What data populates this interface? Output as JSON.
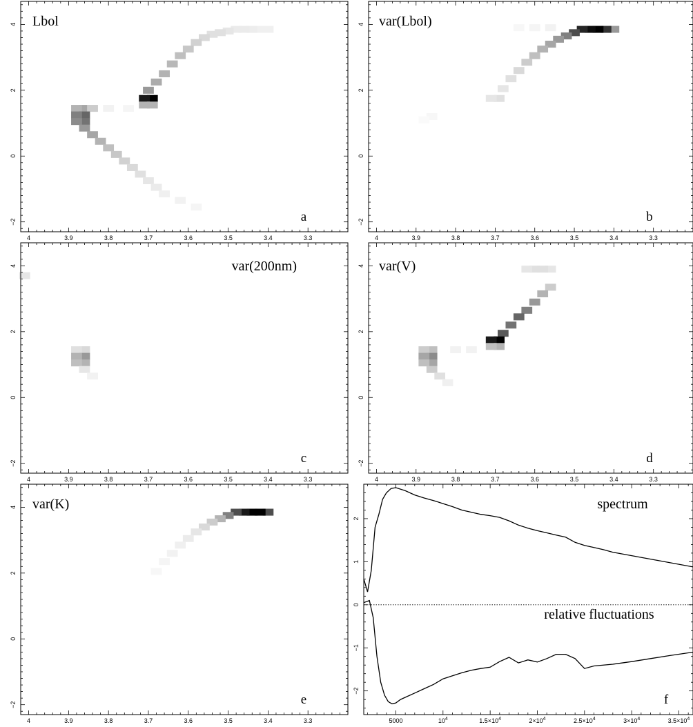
{
  "chart_data": [
    {
      "type": "heatmap",
      "panel": "a",
      "title": "Lbol",
      "x_ticks": [
        "4",
        "3.9",
        "3.8",
        "3.7",
        "3.6",
        "3.5",
        "3.4",
        "3.3"
      ],
      "y_ticks": [
        "−2",
        "0",
        "2",
        "4"
      ],
      "xlim": [
        4.02,
        3.2
      ],
      "ylim": [
        -2.3,
        4.7
      ],
      "cell_size": {
        "dx": 0.01,
        "dy": 0.2
      },
      "cells": [
        [
          3.4,
          3.85,
          0.06
        ],
        [
          3.42,
          3.85,
          0.06
        ],
        [
          3.44,
          3.85,
          0.07
        ],
        [
          3.46,
          3.85,
          0.08
        ],
        [
          3.48,
          3.85,
          0.08
        ],
        [
          3.5,
          3.8,
          0.1
        ],
        [
          3.52,
          3.75,
          0.12
        ],
        [
          3.54,
          3.7,
          0.12
        ],
        [
          3.56,
          3.6,
          0.15
        ],
        [
          3.58,
          3.45,
          0.18
        ],
        [
          3.6,
          3.25,
          0.22
        ],
        [
          3.62,
          3.05,
          0.25
        ],
        [
          3.64,
          2.8,
          0.28
        ],
        [
          3.66,
          2.5,
          0.3
        ],
        [
          3.68,
          2.25,
          0.33
        ],
        [
          3.7,
          2.0,
          0.4
        ],
        [
          3.69,
          1.75,
          1.0
        ],
        [
          3.71,
          1.75,
          0.9
        ],
        [
          3.69,
          1.55,
          0.3
        ],
        [
          3.71,
          1.55,
          0.3
        ],
        [
          3.86,
          1.45,
          0.35
        ],
        [
          3.88,
          1.45,
          0.3
        ],
        [
          3.84,
          1.45,
          0.2
        ],
        [
          3.86,
          1.25,
          0.6
        ],
        [
          3.88,
          1.25,
          0.5
        ],
        [
          3.86,
          1.05,
          0.55
        ],
        [
          3.88,
          1.05,
          0.45
        ],
        [
          3.86,
          0.85,
          0.4
        ],
        [
          3.84,
          0.65,
          0.35
        ],
        [
          3.82,
          0.45,
          0.3
        ],
        [
          3.8,
          0.25,
          0.25
        ],
        [
          3.78,
          0.05,
          0.22
        ],
        [
          3.76,
          -0.15,
          0.18
        ],
        [
          3.74,
          -0.35,
          0.15
        ],
        [
          3.72,
          -0.55,
          0.12
        ],
        [
          3.7,
          -0.75,
          0.1
        ],
        [
          3.68,
          -0.95,
          0.08
        ],
        [
          3.66,
          -1.15,
          0.06
        ],
        [
          3.62,
          -1.35,
          0.05
        ],
        [
          3.58,
          -1.55,
          0.04
        ],
        [
          3.8,
          1.45,
          0.05
        ],
        [
          3.75,
          1.45,
          0.04
        ]
      ],
      "label": "a"
    },
    {
      "type": "heatmap",
      "panel": "b",
      "title": "var(Lbol)",
      "x_ticks": [
        "4",
        "3.9",
        "3.8",
        "3.7",
        "3.6",
        "3.5",
        "3.4",
        "3.3"
      ],
      "y_ticks": [
        "−2",
        "0",
        "2",
        "4"
      ],
      "xlim": [
        4.02,
        3.2
      ],
      "ylim": [
        -2.3,
        4.7
      ],
      "cell_size": {
        "dx": 0.01,
        "dy": 0.2
      },
      "cells": [
        [
          3.4,
          3.85,
          0.4
        ],
        [
          3.42,
          3.85,
          0.8
        ],
        [
          3.44,
          3.85,
          1.0
        ],
        [
          3.46,
          3.85,
          0.95
        ],
        [
          3.48,
          3.85,
          0.85
        ],
        [
          3.5,
          3.75,
          0.7
        ],
        [
          3.52,
          3.65,
          0.5
        ],
        [
          3.54,
          3.55,
          0.4
        ],
        [
          3.56,
          3.4,
          0.35
        ],
        [
          3.58,
          3.25,
          0.3
        ],
        [
          3.6,
          3.05,
          0.25
        ],
        [
          3.62,
          2.85,
          0.2
        ],
        [
          3.64,
          2.6,
          0.15
        ],
        [
          3.66,
          2.35,
          0.12
        ],
        [
          3.68,
          2.05,
          0.1
        ],
        [
          3.69,
          1.75,
          0.12
        ],
        [
          3.71,
          1.75,
          0.1
        ],
        [
          3.56,
          3.9,
          0.05
        ],
        [
          3.6,
          3.9,
          0.04
        ],
        [
          3.64,
          3.9,
          0.03
        ],
        [
          3.86,
          1.2,
          0.03
        ],
        [
          3.88,
          1.1,
          0.02
        ]
      ],
      "label": "b"
    },
    {
      "type": "heatmap",
      "panel": "c",
      "title": "var(200nm)",
      "x_ticks": [
        "4",
        "3.9",
        "3.8",
        "3.7",
        "3.6",
        "3.5",
        "3.4",
        "3.3"
      ],
      "y_ticks": [
        "−2",
        "0",
        "2",
        "4"
      ],
      "xlim": [
        4.02,
        3.2
      ],
      "ylim": [
        -2.3,
        4.7
      ],
      "cell_size": {
        "dx": 0.01,
        "dy": 0.2
      },
      "cells": [
        [
          4.01,
          3.7,
          0.1
        ],
        [
          3.86,
          1.45,
          0.15
        ],
        [
          3.88,
          1.45,
          0.12
        ],
        [
          3.86,
          1.25,
          0.4
        ],
        [
          3.88,
          1.25,
          0.3
        ],
        [
          3.86,
          1.05,
          0.3
        ],
        [
          3.88,
          1.05,
          0.25
        ],
        [
          3.86,
          0.85,
          0.1
        ],
        [
          3.84,
          0.65,
          0.05
        ]
      ],
      "label": "c"
    },
    {
      "type": "heatmap",
      "panel": "d",
      "title": "var(V)",
      "x_ticks": [
        "4",
        "3.9",
        "3.8",
        "3.7",
        "3.6",
        "3.5",
        "3.4",
        "3.3"
      ],
      "y_ticks": [
        "−2",
        "0",
        "2",
        "4"
      ],
      "xlim": [
        4.02,
        3.2
      ],
      "ylim": [
        -2.3,
        4.7
      ],
      "cell_size": {
        "dx": 0.01,
        "dy": 0.2
      },
      "cells": [
        [
          3.56,
          3.9,
          0.1
        ],
        [
          3.58,
          3.9,
          0.12
        ],
        [
          3.6,
          3.9,
          0.12
        ],
        [
          3.62,
          3.9,
          0.1
        ],
        [
          3.56,
          3.35,
          0.2
        ],
        [
          3.58,
          3.15,
          0.3
        ],
        [
          3.6,
          2.9,
          0.4
        ],
        [
          3.62,
          2.65,
          0.5
        ],
        [
          3.64,
          2.45,
          0.6
        ],
        [
          3.66,
          2.2,
          0.55
        ],
        [
          3.68,
          1.95,
          0.65
        ],
        [
          3.69,
          1.75,
          1.0
        ],
        [
          3.71,
          1.75,
          0.9
        ],
        [
          3.69,
          1.55,
          0.3
        ],
        [
          3.71,
          1.55,
          0.25
        ],
        [
          3.86,
          1.45,
          0.25
        ],
        [
          3.88,
          1.45,
          0.2
        ],
        [
          3.86,
          1.25,
          0.45
        ],
        [
          3.88,
          1.25,
          0.35
        ],
        [
          3.86,
          1.05,
          0.35
        ],
        [
          3.88,
          1.05,
          0.25
        ],
        [
          3.86,
          0.85,
          0.2
        ],
        [
          3.84,
          0.65,
          0.12
        ],
        [
          3.82,
          0.45,
          0.06
        ],
        [
          3.76,
          1.45,
          0.05
        ],
        [
          3.8,
          1.45,
          0.05
        ]
      ],
      "label": "d"
    },
    {
      "type": "heatmap",
      "panel": "e",
      "title": "var(K)",
      "x_ticks": [
        "4",
        "3.9",
        "3.8",
        "3.7",
        "3.6",
        "3.5",
        "3.4",
        "3.3"
      ],
      "y_ticks": [
        "−2",
        "0",
        "2",
        "4"
      ],
      "xlim": [
        4.02,
        3.2
      ],
      "ylim": [
        -2.3,
        4.7
      ],
      "cell_size": {
        "dx": 0.01,
        "dy": 0.2
      },
      "cells": [
        [
          3.4,
          3.85,
          0.7
        ],
        [
          3.42,
          3.85,
          1.0
        ],
        [
          3.44,
          3.85,
          1.0
        ],
        [
          3.46,
          3.85,
          0.9
        ],
        [
          3.48,
          3.85,
          0.7
        ],
        [
          3.5,
          3.75,
          0.5
        ],
        [
          3.52,
          3.65,
          0.3
        ],
        [
          3.54,
          3.55,
          0.2
        ],
        [
          3.56,
          3.4,
          0.15
        ],
        [
          3.58,
          3.25,
          0.1
        ],
        [
          3.6,
          3.05,
          0.08
        ],
        [
          3.62,
          2.85,
          0.06
        ],
        [
          3.64,
          2.6,
          0.05
        ],
        [
          3.66,
          2.35,
          0.04
        ],
        [
          3.68,
          2.05,
          0.03
        ]
      ],
      "label": "e"
    },
    {
      "type": "line",
      "panel": "f",
      "x_ticks": [
        {
          "value": 5000,
          "label": "5000",
          "exp": ""
        },
        {
          "value": 10000,
          "label": "10",
          "exp": "4"
        },
        {
          "value": 15000,
          "label": "1.5×10",
          "exp": "4"
        },
        {
          "value": 20000,
          "label": "2×10",
          "exp": "4"
        },
        {
          "value": 25000,
          "label": "2.5×10",
          "exp": "4"
        },
        {
          "value": 30000,
          "label": "3×10",
          "exp": "4"
        },
        {
          "value": 35000,
          "label": "3.5×10",
          "exp": "4"
        }
      ],
      "y_ticks": [
        "−2",
        "−1",
        "0",
        "1",
        "2"
      ],
      "xlim": [
        1600,
        36500
      ],
      "ylim": [
        -2.55,
        2.8
      ],
      "zero_line": true,
      "series": [
        {
          "annotation": "spectrum",
          "x": [
            1600,
            2000,
            2400,
            2800,
            3200,
            3600,
            4000,
            4500,
            5000,
            6000,
            7000,
            8000,
            9000,
            10000,
            11000,
            12000,
            13000,
            14000,
            15000,
            16000,
            17000,
            18000,
            19000,
            20000,
            21000,
            22000,
            23000,
            24000,
            25000,
            26000,
            27000,
            28000,
            29000,
            30000,
            31000,
            32000,
            33000,
            34000,
            35000,
            36500
          ],
          "y": [
            0.6,
            0.3,
            0.8,
            1.8,
            2.1,
            2.45,
            2.6,
            2.7,
            2.72,
            2.65,
            2.55,
            2.48,
            2.42,
            2.35,
            2.28,
            2.2,
            2.15,
            2.1,
            2.07,
            2.03,
            1.95,
            1.85,
            1.78,
            1.72,
            1.67,
            1.62,
            1.57,
            1.45,
            1.38,
            1.33,
            1.28,
            1.22,
            1.18,
            1.14,
            1.1,
            1.06,
            1.02,
            0.98,
            0.94,
            0.88
          ]
        },
        {
          "annotation": "relative fluctuations",
          "x": [
            1600,
            2200,
            2600,
            3000,
            3400,
            3800,
            4200,
            4600,
            5000,
            5500,
            6000,
            7000,
            8000,
            9000,
            10000,
            11000,
            12000,
            13000,
            14000,
            15000,
            16000,
            17000,
            18000,
            19000,
            20000,
            21000,
            22000,
            23000,
            24000,
            25000,
            26000,
            28000,
            30000,
            32000,
            34000,
            36500
          ],
          "y": [
            0.05,
            0.1,
            -0.3,
            -1.2,
            -1.8,
            -2.1,
            -2.25,
            -2.3,
            -2.28,
            -2.2,
            -2.15,
            -2.05,
            -1.95,
            -1.85,
            -1.72,
            -1.65,
            -1.58,
            -1.52,
            -1.48,
            -1.45,
            -1.32,
            -1.22,
            -1.35,
            -1.28,
            -1.33,
            -1.25,
            -1.15,
            -1.15,
            -1.25,
            -1.48,
            -1.42,
            -1.38,
            -1.32,
            -1.25,
            -1.18,
            -1.1
          ]
        }
      ],
      "label": "f"
    }
  ]
}
